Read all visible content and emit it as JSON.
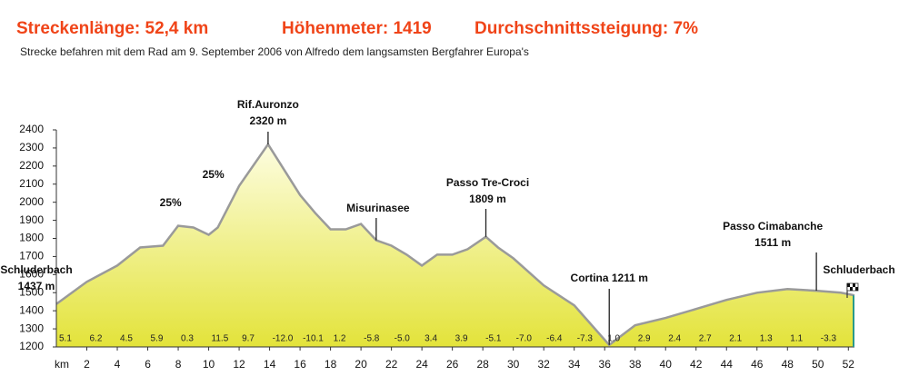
{
  "chart_data": {
    "type": "area",
    "headline": [
      "Streckenlänge: 52,4 km",
      "Höhenmeter: 1419",
      "Durchschnittssteigung: 7%"
    ],
    "subtitle": "Strecke befahren mit dem Rad am 9. September 2006 von Alfredo dem langsamsten Bergfahrer Europa's",
    "xlabel": "km",
    "x": [
      0,
      2,
      4,
      5.5,
      7,
      8,
      9,
      10,
      10.6,
      12,
      13.9,
      16,
      17,
      18,
      19,
      20,
      21,
      22,
      23,
      24,
      25,
      26,
      27,
      28.2,
      29,
      30,
      32,
      34,
      36.3,
      38,
      40,
      42,
      44,
      46,
      48,
      49.9,
      51.5,
      52.4
    ],
    "values": [
      1437,
      1560,
      1650,
      1750,
      1760,
      1870,
      1860,
      1820,
      1860,
      2090,
      2320,
      2040,
      1940,
      1850,
      1850,
      1880,
      1790,
      1760,
      1710,
      1650,
      1710,
      1710,
      1740,
      1809,
      1750,
      1690,
      1540,
      1430,
      1211,
      1320,
      1360,
      1410,
      1460,
      1500,
      1520,
      1511,
      1500,
      1485
    ],
    "line_color": "#9a9a9a",
    "fill_top": "#fdfde0",
    "fill_bottom": "#e3e33a",
    "xlim": [
      0,
      52.4
    ],
    "ylim": [
      1200,
      2400
    ],
    "xticks": [
      2,
      4,
      6,
      8,
      10,
      12,
      14,
      16,
      18,
      20,
      22,
      24,
      26,
      28,
      30,
      32,
      34,
      36,
      38,
      40,
      42,
      44,
      46,
      48,
      50,
      52
    ],
    "yticks": [
      1200,
      1300,
      1400,
      1500,
      1600,
      1700,
      1800,
      1900,
      2000,
      2100,
      2200,
      2300,
      2400
    ],
    "gradient_labels": [
      "5.1",
      "6.2",
      "4.5",
      "5.9",
      "0.3",
      "11.5",
      "9.7",
      "-12.0",
      "-10.1",
      "1.2",
      "-5.8",
      "-5.0",
      "3.4",
      "3.9",
      "-5.1",
      "-7.0",
      "-6.4",
      "-7.3",
      "1.0",
      "2.9",
      "2.4",
      "2.7",
      "2.1",
      "1.3",
      "1.1",
      "-3.3"
    ],
    "annotations": [
      {
        "text": [
          "Schluderbach",
          "1437 m"
        ],
        "x": 0
      },
      {
        "text": [
          "25%"
        ],
        "x": 7.5
      },
      {
        "text": [
          "25%"
        ],
        "x": 10.6
      },
      {
        "text": [
          "Rif.Auronzo",
          "2320 m"
        ],
        "x": 13.9
      },
      {
        "text": [
          "Misurinasee"
        ],
        "x": 21
      },
      {
        "text": [
          "Passo Tre-Croci",
          "1809 m"
        ],
        "x": 28.2
      },
      {
        "text": [
          "Cortina 1211 m"
        ],
        "x": 36.3
      },
      {
        "text": [
          "Passo Cimabanche",
          "1511 m"
        ],
        "x": 49.9
      },
      {
        "text": [
          "Schluderbach"
        ],
        "x": 52.4
      }
    ]
  }
}
